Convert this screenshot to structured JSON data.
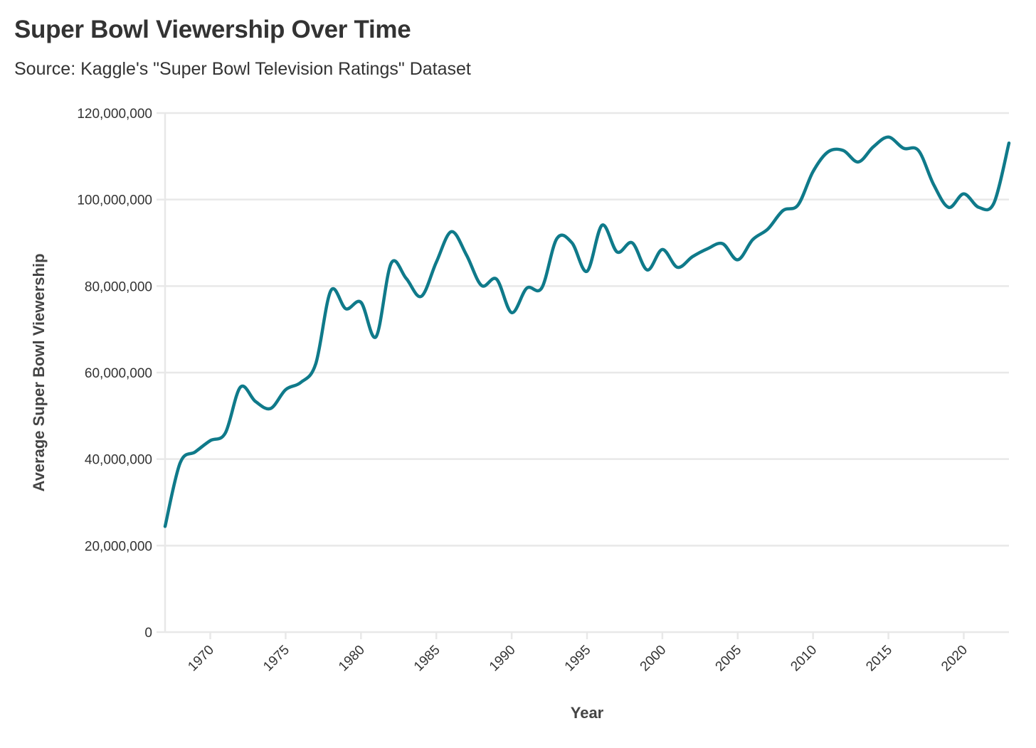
{
  "chart_data": {
    "type": "line",
    "title": "Super Bowl Viewership Over Time",
    "subtitle": "Source: Kaggle's \"Super Bowl Television Ratings\" Dataset",
    "xlabel": "Year",
    "ylabel": "Average Super Bowl Viewership",
    "xlim": [
      1967,
      2023
    ],
    "ylim": [
      0,
      120000000
    ],
    "x_ticks": [
      1970,
      1975,
      1980,
      1985,
      1990,
      1995,
      2000,
      2005,
      2010,
      2015,
      2020
    ],
    "y_ticks": [
      0,
      20000000,
      40000000,
      60000000,
      80000000,
      100000000,
      120000000
    ],
    "y_tick_labels": [
      "0",
      "20,000,000",
      "40,000,000",
      "60,000,000",
      "80,000,000",
      "100,000,000",
      "120,000,000"
    ],
    "grid": "horizontal",
    "legend": "none",
    "line_color": "#0F7A8A",
    "series": [
      {
        "x": [
          1967,
          1968,
          1969,
          1970,
          1971,
          1972,
          1973,
          1974,
          1975,
          1976,
          1977,
          1978,
          1979,
          1980,
          1981,
          1982,
          1983,
          1984,
          1985,
          1986,
          1987,
          1988,
          1989,
          1990,
          1991,
          1992,
          1993,
          1994,
          1995,
          1996,
          1997,
          1998,
          1999,
          2000,
          2001,
          2002,
          2003,
          2004,
          2005,
          2006,
          2007,
          2008,
          2009,
          2010,
          2011,
          2012,
          2013,
          2014,
          2015,
          2016,
          2017,
          2018,
          2019,
          2020,
          2021,
          2022,
          2023
        ],
        "values": [
          24430000,
          39120000,
          41660000,
          44270000,
          46040000,
          56640000,
          53320000,
          51700000,
          56050000,
          57710000,
          62050000,
          78940000,
          74740000,
          76240000,
          68290000,
          85240000,
          81770000,
          77620000,
          85530000,
          92570000,
          87190000,
          80140000,
          81590000,
          73852000,
          79510000,
          79590000,
          90990000,
          90000000,
          83420000,
          94080000,
          87870000,
          90000000,
          83720000,
          88465000,
          84335000,
          86801000,
          88637000,
          89795000,
          86072000,
          90745000,
          93184000,
          97448000,
          98732000,
          106476000,
          111041000,
          111346000,
          108693000,
          112191000,
          114442000,
          111864000,
          111319000,
          103471000,
          98190000,
          101320000,
          98200000,
          99180000,
          113060000
        ]
      }
    ]
  }
}
